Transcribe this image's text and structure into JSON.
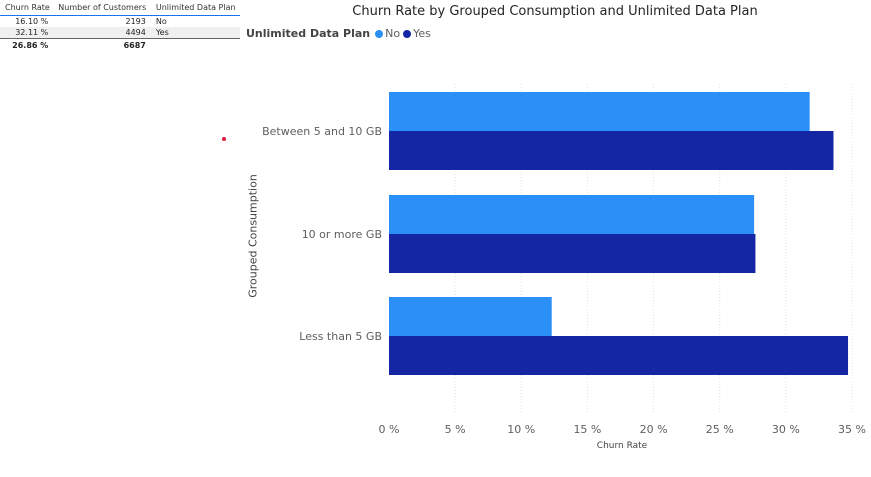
{
  "table": {
    "headers": [
      "Churn Rate",
      "Number of Customers",
      "Unlimited Data Plan"
    ],
    "rows": [
      [
        "16.10 %",
        "2193",
        "No"
      ],
      [
        "32.11 %",
        "4494",
        "Yes"
      ]
    ],
    "total": [
      "26.86 %",
      "6687",
      ""
    ]
  },
  "chart_data": {
    "type": "bar",
    "orientation": "horizontal",
    "title": "Churn Rate by Grouped Consumption and Unlimited Data Plan",
    "xlabel": "Churn Rate",
    "ylabel": "Grouped Consumption",
    "legend_title": "Unlimited Data Plan",
    "legend_position": "top-left",
    "categories": [
      "Between 5 and 10 GB",
      "10 or more GB",
      "Less than 5 GB"
    ],
    "series": [
      {
        "name": "No",
        "color": "#2a8ff7",
        "values": [
          31.8,
          27.6,
          12.3
        ]
      },
      {
        "name": "Yes",
        "color": "#1426a3",
        "values": [
          33.6,
          27.7,
          34.7
        ]
      }
    ],
    "xlim": [
      0,
      35
    ],
    "x_ticks": [
      0,
      5,
      10,
      15,
      20,
      25,
      30,
      35
    ],
    "x_tick_labels": [
      "0 %",
      "5 %",
      "10 %",
      "15 %",
      "20 %",
      "25 %",
      "30 %",
      "35 %"
    ],
    "grid": true
  }
}
